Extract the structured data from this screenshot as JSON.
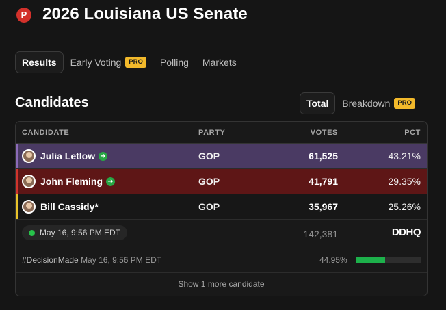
{
  "header": {
    "logo_letter": "P",
    "title": "2026 Louisiana US Senate"
  },
  "tabs": [
    {
      "label": "Results",
      "active": true
    },
    {
      "label": "Early Voting",
      "badge": "PRO"
    },
    {
      "label": "Polling"
    },
    {
      "label": "Markets"
    }
  ],
  "section": {
    "title": "Candidates"
  },
  "view_toggle": {
    "total_label": "Total",
    "breakdown_label": "Breakdown",
    "breakdown_badge": "PRO"
  },
  "table": {
    "headers": {
      "candidate": "CANDIDATE",
      "party": "PARTY",
      "votes": "VOTES",
      "pct": "PCT"
    },
    "rows": [
      {
        "name": "Julia Letlow",
        "party": "GOP",
        "votes": "61,525",
        "pct": "43.21%",
        "advanced": true,
        "row_color": "#4a3a63",
        "bar_color": "#8b6bb8"
      },
      {
        "name": "John Fleming",
        "party": "GOP",
        "votes": "41,791",
        "pct": "29.35%",
        "advanced": true,
        "row_color": "#5e1616",
        "bar_color": "#d0342c"
      },
      {
        "name": "Bill Cassidy*",
        "party": "GOP",
        "votes": "35,967",
        "pct": "25.26%",
        "advanced": false,
        "row_color": "#171717",
        "bar_color": "#e8c22a"
      }
    ],
    "totals": {
      "timestamp": "May 16, 9:56 PM EDT",
      "total_votes": "142,381",
      "source_logo": "DDHQ"
    },
    "meta": {
      "decision_tag": "#DecisionMade",
      "decision_time": "May 16, 9:56 PM EDT",
      "reporting_pct": "44.95%",
      "reporting_fraction": 0.4495
    },
    "show_more": "Show 1 more candidate"
  },
  "colors": {
    "accent_pro": "#f2b92b",
    "advance_green": "#27a744",
    "progress_green": "#1db14b"
  },
  "icons": {
    "logo": "p-logo-icon",
    "advance": "arrow-right-circle-icon",
    "live": "live-dot-icon"
  }
}
